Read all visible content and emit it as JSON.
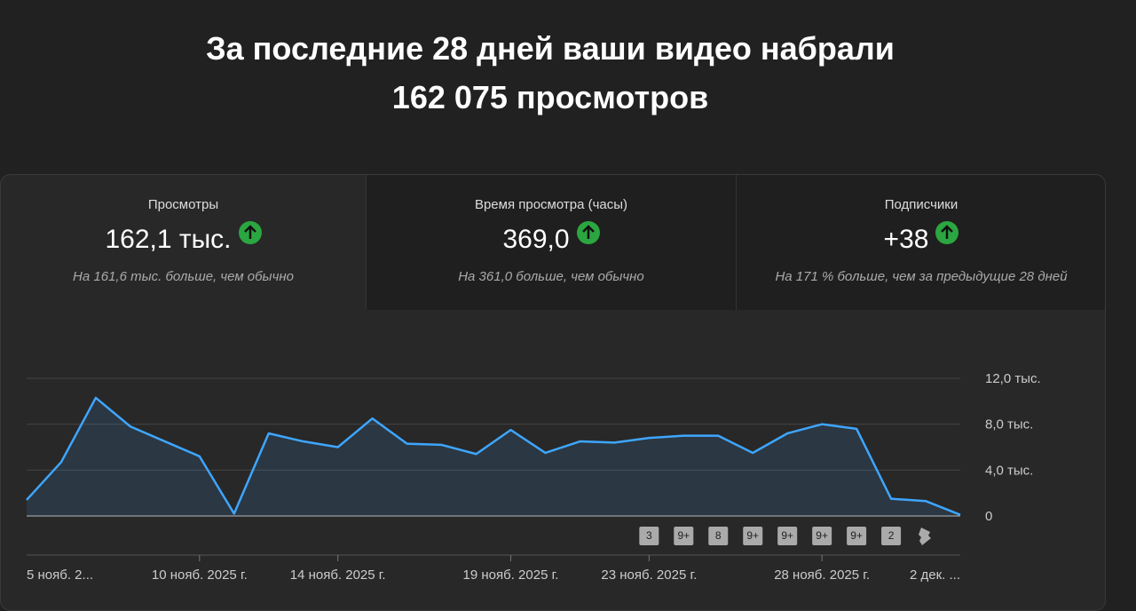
{
  "header": {
    "title_line1": "За последние 28 дней ваши видео набрали",
    "title_line2": "162 075 просмотров"
  },
  "cards": [
    {
      "title": "Просмотры",
      "value": "162,1 тыс.",
      "note": "На 161,6 тыс. больше, чем обычно"
    },
    {
      "title": "Время просмотра (часы)",
      "value": "369,0",
      "note": "На 361,0 больше, чем обычно"
    },
    {
      "title": "Подписчики",
      "value": "+38",
      "note": "На 171 % больше, чем за предыдущие 28 дней"
    }
  ],
  "chart_data": {
    "type": "area",
    "categories": [
      "5 нояб. 2...",
      null,
      null,
      null,
      null,
      "10 нояб. 2025 г.",
      null,
      null,
      null,
      "14 нояб. 2025 г.",
      null,
      null,
      null,
      null,
      "19 нояб. 2025 г.",
      null,
      null,
      null,
      "23 нояб. 2025 г.",
      null,
      null,
      null,
      null,
      "28 нояб. 2025 г.",
      null,
      null,
      null,
      "2 дек. ..."
    ],
    "values": [
      1400,
      4700,
      10300,
      7800,
      6500,
      5200,
      200,
      7200,
      6500,
      6000,
      8500,
      6300,
      6200,
      5400,
      7500,
      5500,
      6500,
      6400,
      6800,
      7000,
      7000,
      5500,
      7200,
      8000,
      7600,
      1500,
      1300,
      100
    ],
    "color": "#3ea6ff",
    "ylim": [
      0,
      12000
    ],
    "yticks": [
      0,
      {
        "value": 4000,
        "label": "4,0 тыс."
      },
      {
        "value": 8000,
        "label": "8,0 тыс."
      },
      {
        "value": 12000,
        "label": "12,0 тыс."
      }
    ],
    "grid": true,
    "badges": [
      "3",
      "9+",
      "8",
      "9+",
      "9+",
      "9+",
      "9+",
      "2"
    ]
  }
}
